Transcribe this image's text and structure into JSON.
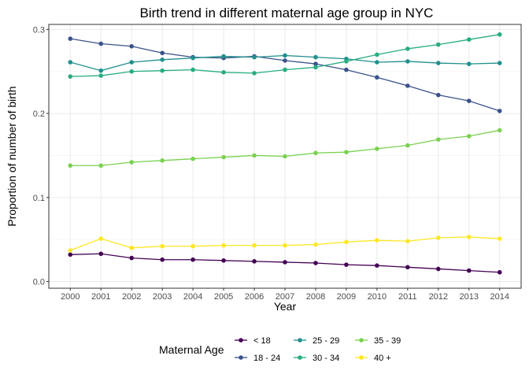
{
  "chart_data": {
    "type": "line",
    "title": "Birth trend in different maternal age group in NYC",
    "xlabel": "Year",
    "ylabel": "Proportion of number of  birth",
    "x": [
      2000,
      2001,
      2002,
      2003,
      2004,
      2005,
      2006,
      2007,
      2008,
      2009,
      2010,
      2011,
      2012,
      2013,
      2014
    ],
    "xlim": [
      2000,
      2014
    ],
    "ylim": [
      0,
      0.3
    ],
    "y_ticks": [
      "0.0",
      "0.1",
      "0.2",
      "0.3"
    ],
    "grid": true,
    "legend": {
      "title": "Maternal Age",
      "position": "bottom"
    },
    "series": [
      {
        "name": "< 18",
        "color": "#440154",
        "values": [
          0.032,
          0.033,
          0.028,
          0.026,
          0.026,
          0.025,
          0.024,
          0.023,
          0.022,
          0.02,
          0.019,
          0.017,
          0.015,
          0.013,
          0.011
        ]
      },
      {
        "name": "18 - 24",
        "color": "#3B528B",
        "values": [
          0.289,
          0.283,
          0.28,
          0.272,
          0.267,
          0.266,
          0.268,
          0.263,
          0.259,
          0.252,
          0.243,
          0.233,
          0.222,
          0.215,
          0.203
        ]
      },
      {
        "name": "25 - 29",
        "color": "#21908C",
        "values": [
          0.261,
          0.251,
          0.261,
          0.264,
          0.266,
          0.268,
          0.267,
          0.269,
          0.267,
          0.265,
          0.261,
          0.262,
          0.26,
          0.259,
          0.26
        ]
      },
      {
        "name": "30 - 34",
        "color": "#27AD81",
        "values": [
          0.244,
          0.245,
          0.25,
          0.251,
          0.252,
          0.249,
          0.248,
          0.252,
          0.255,
          0.262,
          0.27,
          0.277,
          0.282,
          0.288,
          0.294
        ]
      },
      {
        "name": "35 - 39",
        "color": "#7AD151",
        "values": [
          0.138,
          0.138,
          0.142,
          0.144,
          0.146,
          0.148,
          0.15,
          0.149,
          0.153,
          0.154,
          0.158,
          0.162,
          0.169,
          0.173,
          0.18
        ]
      },
      {
        "name": "40 +",
        "color": "#FDE725",
        "values": [
          0.037,
          0.051,
          0.04,
          0.042,
          0.042,
          0.043,
          0.043,
          0.043,
          0.044,
          0.047,
          0.049,
          0.048,
          0.052,
          0.053,
          0.051
        ]
      }
    ]
  }
}
